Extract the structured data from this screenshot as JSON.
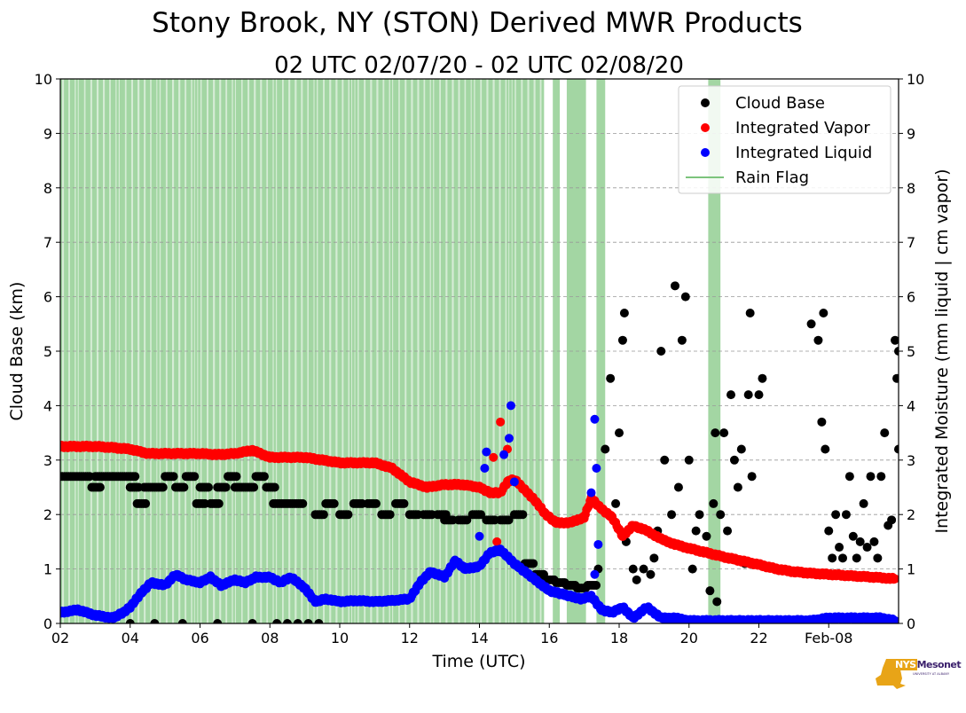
{
  "chart_data": {
    "type": "scatter",
    "title": "Stony Brook, NY (STON) Derived MWR Products",
    "subtitle": "02 UTC 02/07/20 - 02 UTC 02/08/20",
    "xlabel": "Time (UTC)",
    "ylabel_left": "Cloud Base (km)",
    "ylabel_right": "Integrated Moisture (mm liquid | cm vapor)",
    "xlim": [
      2,
      26
    ],
    "ylim": [
      0,
      10
    ],
    "x_tick_labels": [
      {
        "x": 2,
        "label": "02"
      },
      {
        "x": 4,
        "label": "04"
      },
      {
        "x": 6,
        "label": "06"
      },
      {
        "x": 8,
        "label": "08"
      },
      {
        "x": 10,
        "label": "10"
      },
      {
        "x": 12,
        "label": "12"
      },
      {
        "x": 14,
        "label": "14"
      },
      {
        "x": 16,
        "label": "16"
      },
      {
        "x": 18,
        "label": "18"
      },
      {
        "x": 20,
        "label": "20"
      },
      {
        "x": 22,
        "label": "22"
      },
      {
        "x": 24,
        "label": "Feb-08"
      }
    ],
    "y_ticks": [
      0,
      1,
      2,
      3,
      4,
      5,
      6,
      7,
      8,
      9,
      10
    ],
    "grid": "horizontal dashed",
    "legend_placement": "top-right",
    "legend": [
      "Cloud Base",
      "Integrated Vapor",
      "Integrated Liquid",
      "Rain Flag"
    ],
    "colors": {
      "cloud_base": "#000000",
      "vapor": "#ff0000",
      "liquid": "#0000ff",
      "rain": "#7cc47c"
    },
    "rain_flag_periods": [
      [
        2.0,
        15.85
      ],
      [
        16.1,
        16.3
      ],
      [
        16.5,
        17.05
      ],
      [
        17.35,
        17.6
      ],
      [
        20.55,
        20.9
      ]
    ],
    "series": [
      {
        "name": "Integrated Vapor",
        "points": [
          [
            2.0,
            3.25
          ],
          [
            2.5,
            3.25
          ],
          [
            3.0,
            3.25
          ],
          [
            3.5,
            3.23
          ],
          [
            4.0,
            3.2
          ],
          [
            4.5,
            3.12
          ],
          [
            5.0,
            3.12
          ],
          [
            5.5,
            3.12
          ],
          [
            6.0,
            3.12
          ],
          [
            6.5,
            3.1
          ],
          [
            7.0,
            3.12
          ],
          [
            7.5,
            3.18
          ],
          [
            8.0,
            3.05
          ],
          [
            8.5,
            3.05
          ],
          [
            9.0,
            3.05
          ],
          [
            9.5,
            3.0
          ],
          [
            10.0,
            2.95
          ],
          [
            10.5,
            2.95
          ],
          [
            11.0,
            2.95
          ],
          [
            11.5,
            2.85
          ],
          [
            12.0,
            2.6
          ],
          [
            12.5,
            2.5
          ],
          [
            13.0,
            2.55
          ],
          [
            13.5,
            2.55
          ],
          [
            14.0,
            2.5
          ],
          [
            14.3,
            2.4
          ],
          [
            14.6,
            2.4
          ],
          [
            14.8,
            2.6
          ],
          [
            15.0,
            2.65
          ],
          [
            15.3,
            2.45
          ],
          [
            15.6,
            2.25
          ],
          [
            15.9,
            2.0
          ],
          [
            16.2,
            1.85
          ],
          [
            16.6,
            1.85
          ],
          [
            17.0,
            1.95
          ],
          [
            17.2,
            2.3
          ],
          [
            17.5,
            2.1
          ],
          [
            17.8,
            1.95
          ],
          [
            18.1,
            1.6
          ],
          [
            18.4,
            1.8
          ],
          [
            18.8,
            1.7
          ],
          [
            19.2,
            1.55
          ],
          [
            19.6,
            1.45
          ],
          [
            20.0,
            1.38
          ],
          [
            20.5,
            1.3
          ],
          [
            21.0,
            1.22
          ],
          [
            21.5,
            1.15
          ],
          [
            22.0,
            1.08
          ],
          [
            22.5,
            1.0
          ],
          [
            23.0,
            0.95
          ],
          [
            23.5,
            0.92
          ],
          [
            24.0,
            0.9
          ],
          [
            24.5,
            0.88
          ],
          [
            25.0,
            0.86
          ],
          [
            25.5,
            0.84
          ],
          [
            25.9,
            0.82
          ]
        ],
        "outliers": [
          [
            14.4,
            3.05
          ],
          [
            14.6,
            3.7
          ],
          [
            14.8,
            3.2
          ],
          [
            14.5,
            1.5
          ]
        ]
      },
      {
        "name": "Integrated Liquid",
        "points": [
          [
            2.0,
            0.2
          ],
          [
            2.5,
            0.25
          ],
          [
            3.0,
            0.15
          ],
          [
            3.5,
            0.1
          ],
          [
            3.8,
            0.2
          ],
          [
            4.0,
            0.3
          ],
          [
            4.3,
            0.55
          ],
          [
            4.6,
            0.75
          ],
          [
            5.0,
            0.7
          ],
          [
            5.3,
            0.9
          ],
          [
            5.6,
            0.8
          ],
          [
            6.0,
            0.75
          ],
          [
            6.3,
            0.85
          ],
          [
            6.6,
            0.7
          ],
          [
            7.0,
            0.8
          ],
          [
            7.3,
            0.75
          ],
          [
            7.6,
            0.85
          ],
          [
            8.0,
            0.85
          ],
          [
            8.3,
            0.75
          ],
          [
            8.6,
            0.85
          ],
          [
            9.0,
            0.65
          ],
          [
            9.3,
            0.4
          ],
          [
            9.6,
            0.45
          ],
          [
            10.0,
            0.4
          ],
          [
            10.5,
            0.42
          ],
          [
            11.0,
            0.4
          ],
          [
            11.5,
            0.42
          ],
          [
            12.0,
            0.45
          ],
          [
            12.3,
            0.75
          ],
          [
            12.6,
            0.95
          ],
          [
            13.0,
            0.85
          ],
          [
            13.3,
            1.15
          ],
          [
            13.6,
            1.0
          ],
          [
            14.0,
            1.05
          ],
          [
            14.3,
            1.3
          ],
          [
            14.6,
            1.35
          ],
          [
            15.0,
            1.1
          ],
          [
            15.3,
            0.95
          ],
          [
            15.6,
            0.8
          ],
          [
            16.0,
            0.6
          ],
          [
            16.3,
            0.55
          ],
          [
            16.6,
            0.5
          ],
          [
            16.9,
            0.45
          ],
          [
            17.2,
            0.5
          ],
          [
            17.5,
            0.25
          ],
          [
            17.8,
            0.2
          ],
          [
            18.1,
            0.3
          ],
          [
            18.4,
            0.1
          ],
          [
            18.8,
            0.3
          ],
          [
            19.2,
            0.1
          ],
          [
            19.6,
            0.1
          ],
          [
            20.0,
            0.05
          ],
          [
            20.5,
            0.05
          ],
          [
            21.0,
            0.05
          ],
          [
            22.0,
            0.05
          ],
          [
            23.0,
            0.05
          ],
          [
            23.5,
            0.05
          ],
          [
            24.0,
            0.1
          ],
          [
            24.5,
            0.1
          ],
          [
            25.0,
            0.1
          ],
          [
            25.5,
            0.1
          ],
          [
            25.9,
            0.05
          ]
        ],
        "outliers": [
          [
            14.15,
            2.85
          ],
          [
            14.2,
            3.15
          ],
          [
            14.7,
            3.1
          ],
          [
            14.9,
            4.0
          ],
          [
            14.85,
            3.4
          ],
          [
            14.0,
            1.6
          ],
          [
            15.0,
            2.6
          ],
          [
            17.3,
            3.75
          ],
          [
            17.35,
            2.85
          ],
          [
            17.4,
            1.45
          ],
          [
            17.2,
            2.4
          ],
          [
            17.3,
            0.9
          ]
        ]
      },
      {
        "name": "Cloud Base",
        "points": [
          [
            2.0,
            2.7
          ],
          [
            2.3,
            2.7
          ],
          [
            2.6,
            2.7
          ],
          [
            2.9,
            2.5
          ],
          [
            3.0,
            2.7
          ],
          [
            3.3,
            2.7
          ],
          [
            3.6,
            2.7
          ],
          [
            3.9,
            2.7
          ],
          [
            4.0,
            2.5
          ],
          [
            4.2,
            2.2
          ],
          [
            4.4,
            2.5
          ],
          [
            4.7,
            2.5
          ],
          [
            5.0,
            2.7
          ],
          [
            5.3,
            2.5
          ],
          [
            5.6,
            2.7
          ],
          [
            5.9,
            2.2
          ],
          [
            6.0,
            2.5
          ],
          [
            6.3,
            2.2
          ],
          [
            6.5,
            2.5
          ],
          [
            6.8,
            2.7
          ],
          [
            7.0,
            2.5
          ],
          [
            7.3,
            2.5
          ],
          [
            7.6,
            2.7
          ],
          [
            7.9,
            2.5
          ],
          [
            8.1,
            2.2
          ],
          [
            8.4,
            2.2
          ],
          [
            8.7,
            2.2
          ],
          [
            9.3,
            2.0
          ],
          [
            9.6,
            2.2
          ],
          [
            10.0,
            2.0
          ],
          [
            10.4,
            2.2
          ],
          [
            10.8,
            2.2
          ],
          [
            11.2,
            2.0
          ],
          [
            11.6,
            2.2
          ],
          [
            12.0,
            2.0
          ],
          [
            12.4,
            2.0
          ],
          [
            12.8,
            2.0
          ],
          [
            13.0,
            1.9
          ],
          [
            13.4,
            1.9
          ],
          [
            13.8,
            2.0
          ],
          [
            14.2,
            1.9
          ],
          [
            14.6,
            1.9
          ],
          [
            15.0,
            2.0
          ],
          [
            15.3,
            1.1
          ],
          [
            15.6,
            0.9
          ],
          [
            15.9,
            0.8
          ],
          [
            16.2,
            0.75
          ],
          [
            16.5,
            0.7
          ],
          [
            16.8,
            0.65
          ],
          [
            17.1,
            0.7
          ],
          [
            4.0,
            0.0
          ],
          [
            4.7,
            0.0
          ],
          [
            5.5,
            0.0
          ],
          [
            6.5,
            0.0
          ],
          [
            7.5,
            0.0
          ],
          [
            8.2,
            0.0
          ],
          [
            8.5,
            0.0
          ],
          [
            8.8,
            0.0
          ],
          [
            9.1,
            0.0
          ],
          [
            9.4,
            0.0
          ],
          [
            17.4,
            1.0
          ],
          [
            17.6,
            3.2
          ],
          [
            17.75,
            4.5
          ],
          [
            17.9,
            2.2
          ],
          [
            18.0,
            3.5
          ],
          [
            18.1,
            5.2
          ],
          [
            18.15,
            5.7
          ],
          [
            18.2,
            1.5
          ],
          [
            18.4,
            1.0
          ],
          [
            18.5,
            0.8
          ],
          [
            18.7,
            1.0
          ],
          [
            18.9,
            0.9
          ],
          [
            19.0,
            1.2
          ],
          [
            19.1,
            1.7
          ],
          [
            19.2,
            5.0
          ],
          [
            19.3,
            3.0
          ],
          [
            19.5,
            2.0
          ],
          [
            19.6,
            6.2
          ],
          [
            19.7,
            2.5
          ],
          [
            19.8,
            5.2
          ],
          [
            19.9,
            6.0
          ],
          [
            20.0,
            3.0
          ],
          [
            20.1,
            1.0
          ],
          [
            20.2,
            1.7
          ],
          [
            20.3,
            2.0
          ],
          [
            20.5,
            1.6
          ],
          [
            20.6,
            0.6
          ],
          [
            20.7,
            2.2
          ],
          [
            20.75,
            3.5
          ],
          [
            20.8,
            0.4
          ],
          [
            20.9,
            2.0
          ],
          [
            21.0,
            3.5
          ],
          [
            21.1,
            1.7
          ],
          [
            21.2,
            4.2
          ],
          [
            21.3,
            3.0
          ],
          [
            21.4,
            2.5
          ],
          [
            21.5,
            3.2
          ],
          [
            21.6,
            1.1
          ],
          [
            21.7,
            4.2
          ],
          [
            21.75,
            5.7
          ],
          [
            21.8,
            2.7
          ],
          [
            22.0,
            4.2
          ],
          [
            22.1,
            4.5
          ],
          [
            23.5,
            5.5
          ],
          [
            23.7,
            5.2
          ],
          [
            23.8,
            3.7
          ],
          [
            23.85,
            5.7
          ],
          [
            23.9,
            3.2
          ],
          [
            24.0,
            1.7
          ],
          [
            24.1,
            1.2
          ],
          [
            24.2,
            2.0
          ],
          [
            24.3,
            1.4
          ],
          [
            24.4,
            1.2
          ],
          [
            24.5,
            2.0
          ],
          [
            24.6,
            2.7
          ],
          [
            24.7,
            1.6
          ],
          [
            24.8,
            1.2
          ],
          [
            24.9,
            1.5
          ],
          [
            25.0,
            2.2
          ],
          [
            25.1,
            1.4
          ],
          [
            25.2,
            2.7
          ],
          [
            25.3,
            1.5
          ],
          [
            25.4,
            1.2
          ],
          [
            25.5,
            2.7
          ],
          [
            25.6,
            3.5
          ],
          [
            25.7,
            1.8
          ],
          [
            25.8,
            1.9
          ],
          [
            25.9,
            5.2
          ],
          [
            25.95,
            4.5
          ],
          [
            26.0,
            5.0
          ],
          [
            26.0,
            3.2
          ]
        ]
      }
    ]
  },
  "logo": {
    "word_nys": "NYS",
    "word_mesonet": "Mesonet",
    "subtext": "UNIVERSITY AT ALBANY"
  }
}
